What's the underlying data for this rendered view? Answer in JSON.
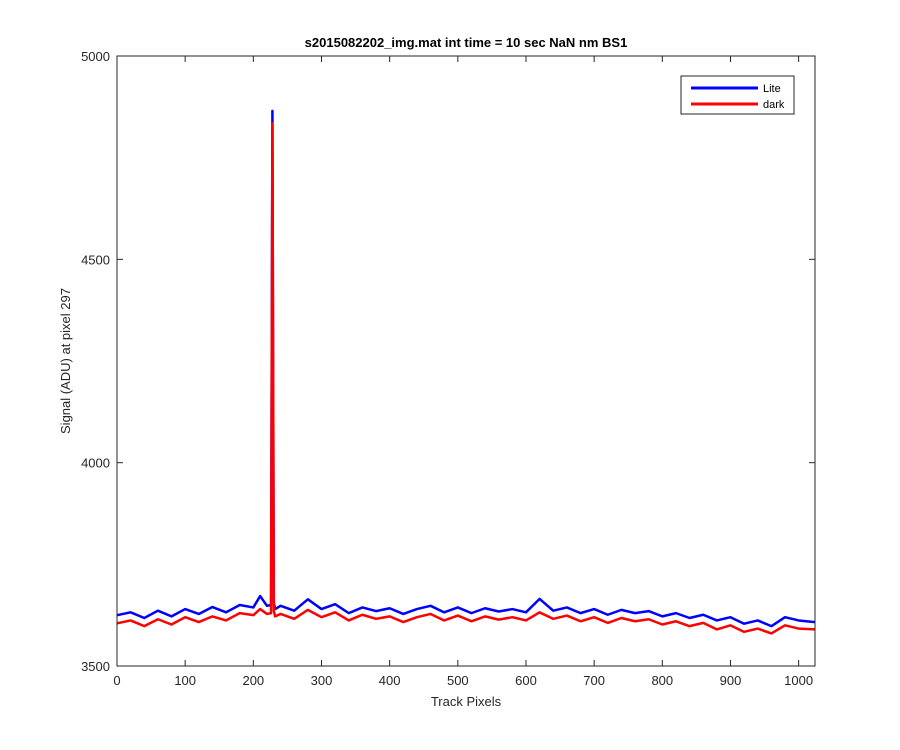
{
  "chart_data": {
    "type": "line",
    "title": "s2015082202_img.mat int time = 10 sec  NaN nm BS1",
    "xlabel": "Track Pixels",
    "ylabel": "Signal (ADU) at pixel 297",
    "xlim": [
      0,
      1024
    ],
    "ylim": [
      3500,
      5000
    ],
    "xticks": [
      "0",
      "100",
      "200",
      "300",
      "400",
      "500",
      "600",
      "700",
      "800",
      "900",
      "1000"
    ],
    "yticks": [
      "3500",
      "4000",
      "4500",
      "5000"
    ],
    "grid": false,
    "legend_position": "top-right",
    "series": [
      {
        "name": "Lite",
        "color": "#0000ff",
        "x": [
          0,
          20,
          40,
          60,
          80,
          100,
          120,
          140,
          160,
          180,
          200,
          210,
          220,
          226,
          228,
          230,
          232,
          240,
          260,
          280,
          300,
          320,
          340,
          360,
          380,
          400,
          420,
          440,
          460,
          480,
          500,
          520,
          540,
          560,
          580,
          600,
          620,
          640,
          660,
          680,
          700,
          720,
          740,
          760,
          780,
          800,
          820,
          840,
          860,
          880,
          900,
          920,
          940,
          960,
          980,
          1000,
          1024
        ],
        "values": [
          3625,
          3632,
          3618,
          3636,
          3622,
          3640,
          3628,
          3645,
          3632,
          3650,
          3644,
          3672,
          3648,
          3650,
          4865,
          3655,
          3640,
          3648,
          3636,
          3664,
          3640,
          3652,
          3630,
          3644,
          3635,
          3642,
          3628,
          3640,
          3648,
          3632,
          3644,
          3630,
          3642,
          3634,
          3640,
          3632,
          3665,
          3636,
          3644,
          3630,
          3640,
          3626,
          3638,
          3630,
          3635,
          3622,
          3630,
          3618,
          3626,
          3612,
          3620,
          3604,
          3612,
          3598,
          3620,
          3612,
          3608
        ]
      },
      {
        "name": "dark",
        "color": "#ff0000",
        "x": [
          0,
          20,
          40,
          60,
          80,
          100,
          120,
          140,
          160,
          180,
          200,
          210,
          220,
          226,
          228,
          230,
          232,
          240,
          260,
          280,
          300,
          320,
          340,
          360,
          380,
          400,
          420,
          440,
          460,
          480,
          500,
          520,
          540,
          560,
          580,
          600,
          620,
          640,
          660,
          680,
          700,
          720,
          740,
          760,
          780,
          800,
          820,
          840,
          860,
          880,
          900,
          920,
          940,
          960,
          980,
          1000,
          1024
        ],
        "values": [
          3605,
          3612,
          3598,
          3615,
          3602,
          3620,
          3608,
          3622,
          3612,
          3630,
          3625,
          3640,
          3628,
          3630,
          4835,
          3635,
          3622,
          3628,
          3616,
          3638,
          3620,
          3632,
          3612,
          3626,
          3616,
          3622,
          3608,
          3620,
          3628,
          3612,
          3624,
          3610,
          3622,
          3614,
          3620,
          3612,
          3632,
          3616,
          3624,
          3610,
          3620,
          3606,
          3618,
          3610,
          3615,
          3602,
          3610,
          3598,
          3606,
          3590,
          3600,
          3584,
          3592,
          3580,
          3600,
          3592,
          3590
        ]
      }
    ]
  }
}
